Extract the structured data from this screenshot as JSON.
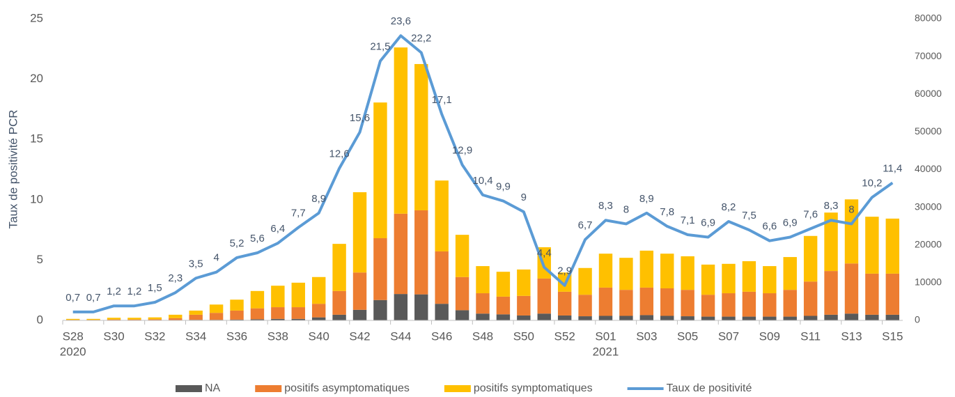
{
  "chart_data": {
    "type": "bar-line",
    "y_label": "Taux de positivité PCR",
    "categories": [
      "S28",
      null,
      "S30",
      null,
      "S32",
      null,
      "S34",
      null,
      "S36",
      null,
      "S38",
      null,
      "S40",
      null,
      "S42",
      null,
      "S44",
      null,
      "S46",
      null,
      "S48",
      null,
      "S50",
      null,
      "S52",
      null,
      "S01",
      null,
      "S03",
      null,
      "S05",
      null,
      "S07",
      null,
      "S09",
      null,
      "S11",
      null,
      "S13",
      null,
      "S15"
    ],
    "x_sublabels": [
      "2020",
      null,
      null,
      null,
      null,
      null,
      null,
      null,
      null,
      null,
      null,
      null,
      null,
      null,
      null,
      null,
      null,
      null,
      null,
      null,
      null,
      null,
      null,
      null,
      null,
      null,
      "2021",
      null,
      null,
      null,
      null,
      null,
      null,
      null,
      null,
      null,
      null,
      null,
      null,
      null,
      null
    ],
    "series": [
      {
        "name": "NA",
        "color": "#595959",
        "axis": "y2",
        "kind": "bar",
        "values": [
          50,
          50,
          80,
          80,
          80,
          100,
          150,
          150,
          200,
          300,
          400,
          400,
          800,
          1500,
          2800,
          5400,
          7000,
          6900,
          4400,
          2700,
          1800,
          1600,
          1300,
          1800,
          1300,
          1100,
          1200,
          1200,
          1400,
          1200,
          1100,
          1000,
          1000,
          1000,
          1000,
          1000,
          1200,
          1500,
          1800,
          1500,
          1500
        ]
      },
      {
        "name": "positifs asymptomatiques",
        "color": "#ed7d31",
        "axis": "y2",
        "kind": "bar",
        "values": [
          100,
          100,
          170,
          170,
          220,
          500,
          1350,
          1850,
          2400,
          2900,
          3100,
          3100,
          3600,
          6300,
          9900,
          16400,
          21300,
          22300,
          13900,
          8800,
          5400,
          4700,
          5200,
          9300,
          6300,
          5700,
          7500,
          6900,
          7300,
          7300,
          7000,
          5800,
          6200,
          6600,
          6200,
          7100,
          9100,
          11600,
          13300,
          10900,
          10900
        ]
      },
      {
        "name": "positifs symptomatiques",
        "color": "#ffc000",
        "axis": "y2",
        "kind": "bar",
        "values": [
          250,
          250,
          450,
          450,
          500,
          900,
          1100,
          2200,
          2900,
          4600,
          5700,
          6500,
          7100,
          12500,
          21300,
          36000,
          44100,
          38800,
          18800,
          11200,
          7200,
          6600,
          7000,
          8300,
          5100,
          7100,
          9000,
          8500,
          9800,
          9200,
          8900,
          8000,
          7800,
          8100,
          7200,
          8700,
          12100,
          15500,
          17000,
          15100,
          14600
        ]
      },
      {
        "name": "Taux de positivité",
        "color": "#5b9bd5",
        "axis": "y",
        "kind": "line",
        "values": [
          0.7,
          0.7,
          1.2,
          1.2,
          1.5,
          2.3,
          3.5,
          4,
          5.2,
          5.6,
          6.4,
          7.7,
          8.9,
          12.6,
          15.6,
          21.5,
          23.6,
          22.2,
          17.1,
          12.9,
          10.4,
          9.9,
          9,
          4.4,
          2.9,
          6.7,
          8.3,
          8,
          8.9,
          7.8,
          7.1,
          6.9,
          8.2,
          7.5,
          6.6,
          6.9,
          7.6,
          8.3,
          8,
          10.2,
          11.4
        ],
        "value_labels": [
          "0,7",
          "0,7",
          "1,2",
          "1,2",
          "1,5",
          "2,3",
          "3,5",
          "4",
          "5,2",
          "5,6",
          "6,4",
          "7,7",
          "8,9",
          "12,6",
          "15,6",
          "21,5",
          "23,6",
          "22,2",
          "17,1",
          "12,9",
          "10,4",
          "9,9",
          "9",
          "4,4",
          "2,9",
          "6,7",
          "8,3",
          "8",
          "8,9",
          "7,8",
          "7,1",
          "6,9",
          "8,2",
          "7,5",
          "6,6",
          "6,9",
          "7,6",
          "8,3",
          "8",
          "10,2",
          "11,4"
        ]
      }
    ],
    "ylim": [
      0,
      25
    ],
    "yticks": [
      0,
      5,
      10,
      15,
      20,
      25
    ],
    "y2lim": [
      0,
      80000
    ],
    "y2ticks": [
      0,
      10000,
      20000,
      30000,
      40000,
      50000,
      60000,
      70000,
      80000
    ],
    "legend": "bottom"
  }
}
